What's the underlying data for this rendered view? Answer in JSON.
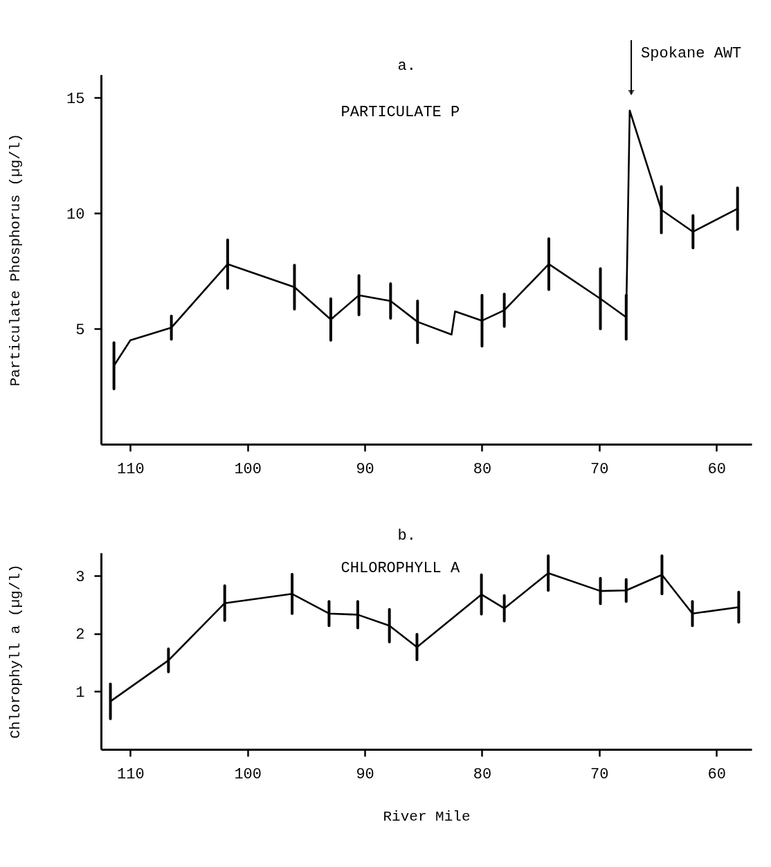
{
  "chart_data": [
    {
      "type": "line",
      "title": "a.",
      "subtitle": "PARTICULATE P",
      "ylabel": "Particulate Phosphorus (µg/l)",
      "x": [
        111.4,
        110.0,
        106.5,
        101.7,
        96.0,
        92.9,
        90.5,
        87.8,
        85.5,
        82.6,
        82.3,
        80.0,
        78.1,
        74.3,
        69.9,
        67.7,
        67.4,
        64.7,
        62.0,
        58.2
      ],
      "series": [
        {
          "color": "#000000",
          "values": [
            3.4,
            4.5,
            5.05,
            7.8,
            6.8,
            5.4,
            6.45,
            6.2,
            5.3,
            4.75,
            5.75,
            5.35,
            5.8,
            7.8,
            6.3,
            5.5,
            14.45,
            10.15,
            9.2,
            10.2
          ],
          "errors": [
            1.0,
            null,
            0.5,
            1.05,
            0.95,
            0.9,
            0.85,
            0.75,
            0.9,
            null,
            null,
            1.1,
            0.7,
            1.1,
            1.3,
            0.95,
            null,
            1.0,
            0.7,
            0.9
          ]
        }
      ],
      "xlim": [
        112.5,
        57
      ],
      "xticks": [
        110,
        100,
        90,
        80,
        70,
        60
      ],
      "ylim": [
        0,
        16
      ],
      "yticks": [
        5,
        10,
        15
      ],
      "annotations": [
        "Spokane AWT"
      ],
      "grid": false,
      "marker": "none",
      "line_style": "solid"
    },
    {
      "type": "line",
      "title": "b.",
      "subtitle": "CHLOROPHYLL A",
      "ylabel": "Chlorophyll a (µg/l)",
      "xlabel": "River Mile",
      "x": [
        111.7,
        106.75,
        101.95,
        96.2,
        93.05,
        90.6,
        87.9,
        85.55,
        80.05,
        78.1,
        74.35,
        69.9,
        67.7,
        64.65,
        62.05,
        58.1
      ],
      "series": [
        {
          "color": "#000000",
          "values": [
            0.83,
            1.54,
            2.53,
            2.69,
            2.35,
            2.33,
            2.14,
            1.77,
            2.68,
            2.44,
            3.05,
            2.74,
            2.75,
            3.02,
            2.35,
            2.46
          ],
          "errors": [
            0.3,
            0.2,
            0.3,
            0.34,
            0.21,
            0.23,
            0.28,
            0.22,
            0.34,
            0.22,
            0.3,
            0.22,
            0.19,
            0.33,
            0.21,
            0.26
          ]
        }
      ],
      "xlim": [
        112.5,
        57
      ],
      "xticks": [
        110,
        100,
        90,
        80,
        70,
        60
      ],
      "ylim": [
        0,
        3.4
      ],
      "yticks": [
        1,
        2,
        3
      ],
      "grid": false,
      "marker": "none",
      "line_style": "solid"
    }
  ]
}
